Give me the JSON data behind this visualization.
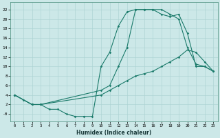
{
  "xlabel": "Humidex (Indice chaleur)",
  "xlim": [
    -0.5,
    23.5
  ],
  "ylim": [
    -1.5,
    23.5
  ],
  "xticks": [
    0,
    1,
    2,
    3,
    4,
    5,
    6,
    7,
    8,
    9,
    10,
    11,
    12,
    13,
    14,
    15,
    16,
    17,
    18,
    19,
    20,
    21,
    22,
    23
  ],
  "yticks": [
    0,
    2,
    4,
    6,
    8,
    10,
    12,
    14,
    16,
    18,
    20,
    22
  ],
  "ytick_labels": [
    "-0",
    "2",
    "4",
    "6",
    "8",
    "10",
    "12",
    "14",
    "16",
    "18",
    "20",
    "22"
  ],
  "bg_color": "#cce8e8",
  "grid_color": "#aed4d4",
  "line_color": "#1a7a6a",
  "line1_x": [
    0,
    1,
    2,
    3,
    4,
    5,
    6,
    7,
    8,
    9,
    10,
    11,
    12,
    13,
    14,
    15,
    16,
    17,
    18,
    19,
    20,
    21,
    22,
    23
  ],
  "line1_y": [
    4,
    3,
    2,
    2,
    1,
    1,
    0,
    -0.5,
    -0.5,
    -0.5,
    10,
    13,
    18.5,
    21.5,
    22,
    22,
    22,
    21,
    20.5,
    21,
    17,
    10,
    10,
    9
  ],
  "line2_x": [
    0,
    2,
    3,
    10,
    11,
    12,
    13,
    14,
    15,
    16,
    17,
    18,
    19,
    20,
    21,
    22,
    23
  ],
  "line2_y": [
    4,
    2,
    2,
    5,
    6,
    10,
    14,
    22,
    22,
    22,
    22,
    21,
    20,
    14,
    10.5,
    10,
    9
  ],
  "line3_x": [
    0,
    2,
    3,
    10,
    11,
    12,
    13,
    14,
    15,
    16,
    17,
    18,
    19,
    20,
    21,
    22,
    23
  ],
  "line3_y": [
    4,
    2,
    2,
    4,
    5,
    6,
    7,
    8,
    8.5,
    9,
    10,
    11,
    12,
    13.5,
    13,
    11,
    9
  ],
  "figsize": [
    3.2,
    2.0
  ],
  "dpi": 100
}
